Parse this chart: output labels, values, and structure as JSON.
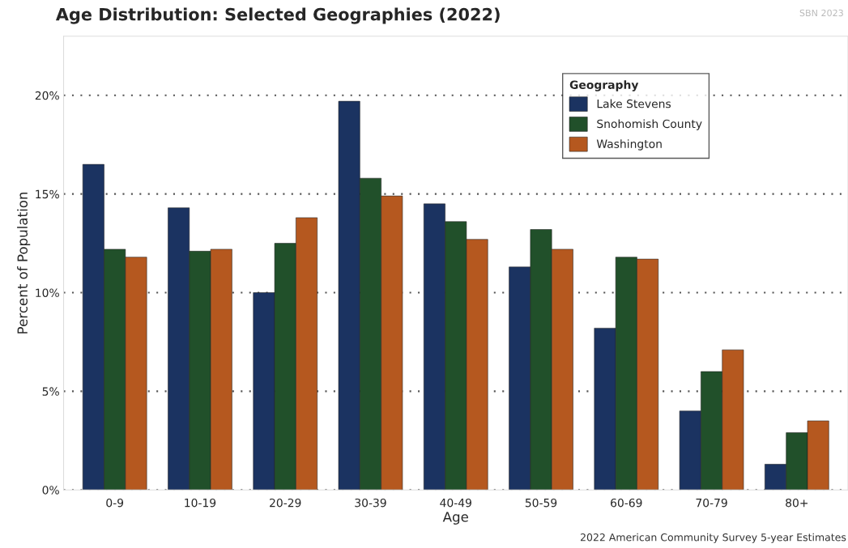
{
  "chart_data": {
    "type": "bar",
    "title": "Age Distribution: Selected Geographies (2022)",
    "xlabel": "Age",
    "ylabel": "Percent of Population",
    "legend_title": "Geography",
    "categories": [
      "0-9",
      "10-19",
      "20-29",
      "30-39",
      "40-49",
      "50-59",
      "60-69",
      "70-79",
      "80+"
    ],
    "series": [
      {
        "name": "Lake Stevens",
        "color": "#1b3361",
        "values": [
          16.5,
          14.3,
          10.0,
          19.7,
          14.5,
          11.3,
          8.2,
          4.0,
          1.3
        ]
      },
      {
        "name": "Snohomish County",
        "color": "#21502a",
        "values": [
          12.2,
          12.1,
          12.5,
          15.8,
          13.6,
          13.2,
          11.8,
          6.0,
          2.9
        ]
      },
      {
        "name": "Washington",
        "color": "#b5581f",
        "values": [
          11.8,
          12.2,
          13.8,
          14.9,
          12.7,
          12.2,
          11.7,
          7.1,
          3.5
        ]
      }
    ],
    "ylim": [
      0,
      23
    ],
    "yticks": [
      {
        "value": 0,
        "label": "0%"
      },
      {
        "value": 5,
        "label": "5%"
      },
      {
        "value": 10,
        "label": "10%"
      },
      {
        "value": 15,
        "label": "15%"
      },
      {
        "value": 20,
        "label": "20%"
      }
    ],
    "grid": "y",
    "legend": "top right",
    "annotations": [
      "SBN 2023",
      "2022 American Community Survey 5-year Estimates"
    ]
  }
}
